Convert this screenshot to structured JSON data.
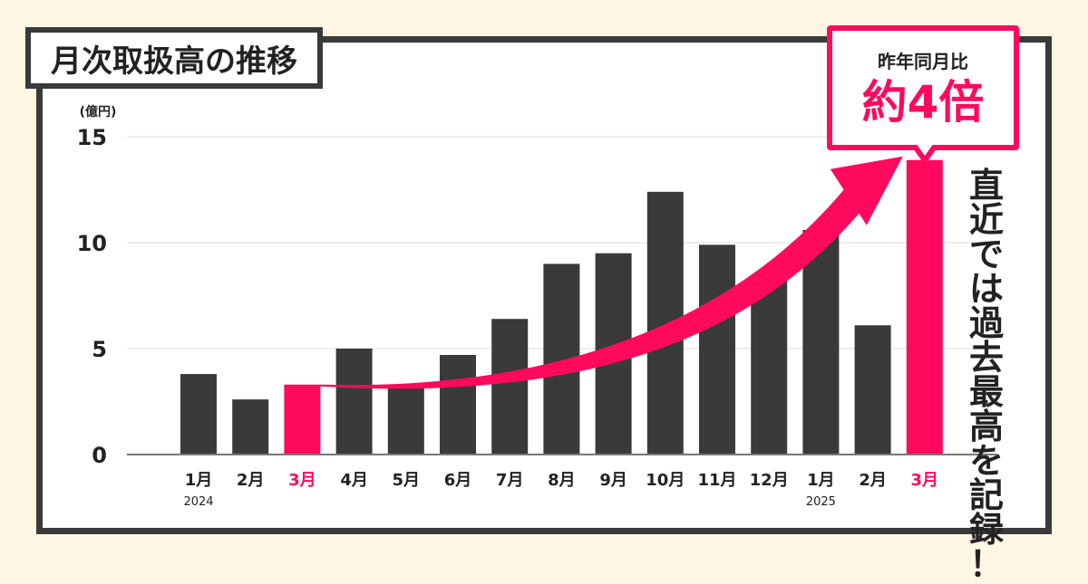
{
  "title": "月次取扱高の推移",
  "callout": {
    "label": "昨年同月比",
    "value": "約4倍"
  },
  "side_note": [
    "直",
    "近",
    "で",
    "は",
    "過",
    "去",
    "最",
    "高",
    "を",
    "記",
    "録",
    "！"
  ],
  "colors": {
    "bar": "#3a3a3a",
    "highlight": "#ff0a5c",
    "background": "#fdf6e3",
    "frame": "#3a3a3a"
  },
  "chart_data": {
    "type": "bar",
    "title": "月次取扱高の推移",
    "ylabel": "(億円)",
    "xlabel": "",
    "ylim": [
      0,
      15
    ],
    "yticks": [
      0,
      5,
      10,
      15
    ],
    "grid": true,
    "categories": [
      "1月",
      "2月",
      "3月",
      "4月",
      "5月",
      "6月",
      "7月",
      "8月",
      "9月",
      "10月",
      "11月",
      "12月",
      "1月",
      "2月",
      "3月"
    ],
    "year_labels": [
      {
        "index": 0,
        "text": "2024"
      },
      {
        "index": 12,
        "text": "2025"
      }
    ],
    "values": [
      3.8,
      2.6,
      3.3,
      5.0,
      3.3,
      4.7,
      6.4,
      9.0,
      9.5,
      12.4,
      9.9,
      8.3,
      10.6,
      6.1,
      13.9
    ],
    "highlight_indices": [
      2,
      14
    ],
    "annotation": {
      "type": "arrow",
      "from_index": 2,
      "to_index": 14
    }
  }
}
